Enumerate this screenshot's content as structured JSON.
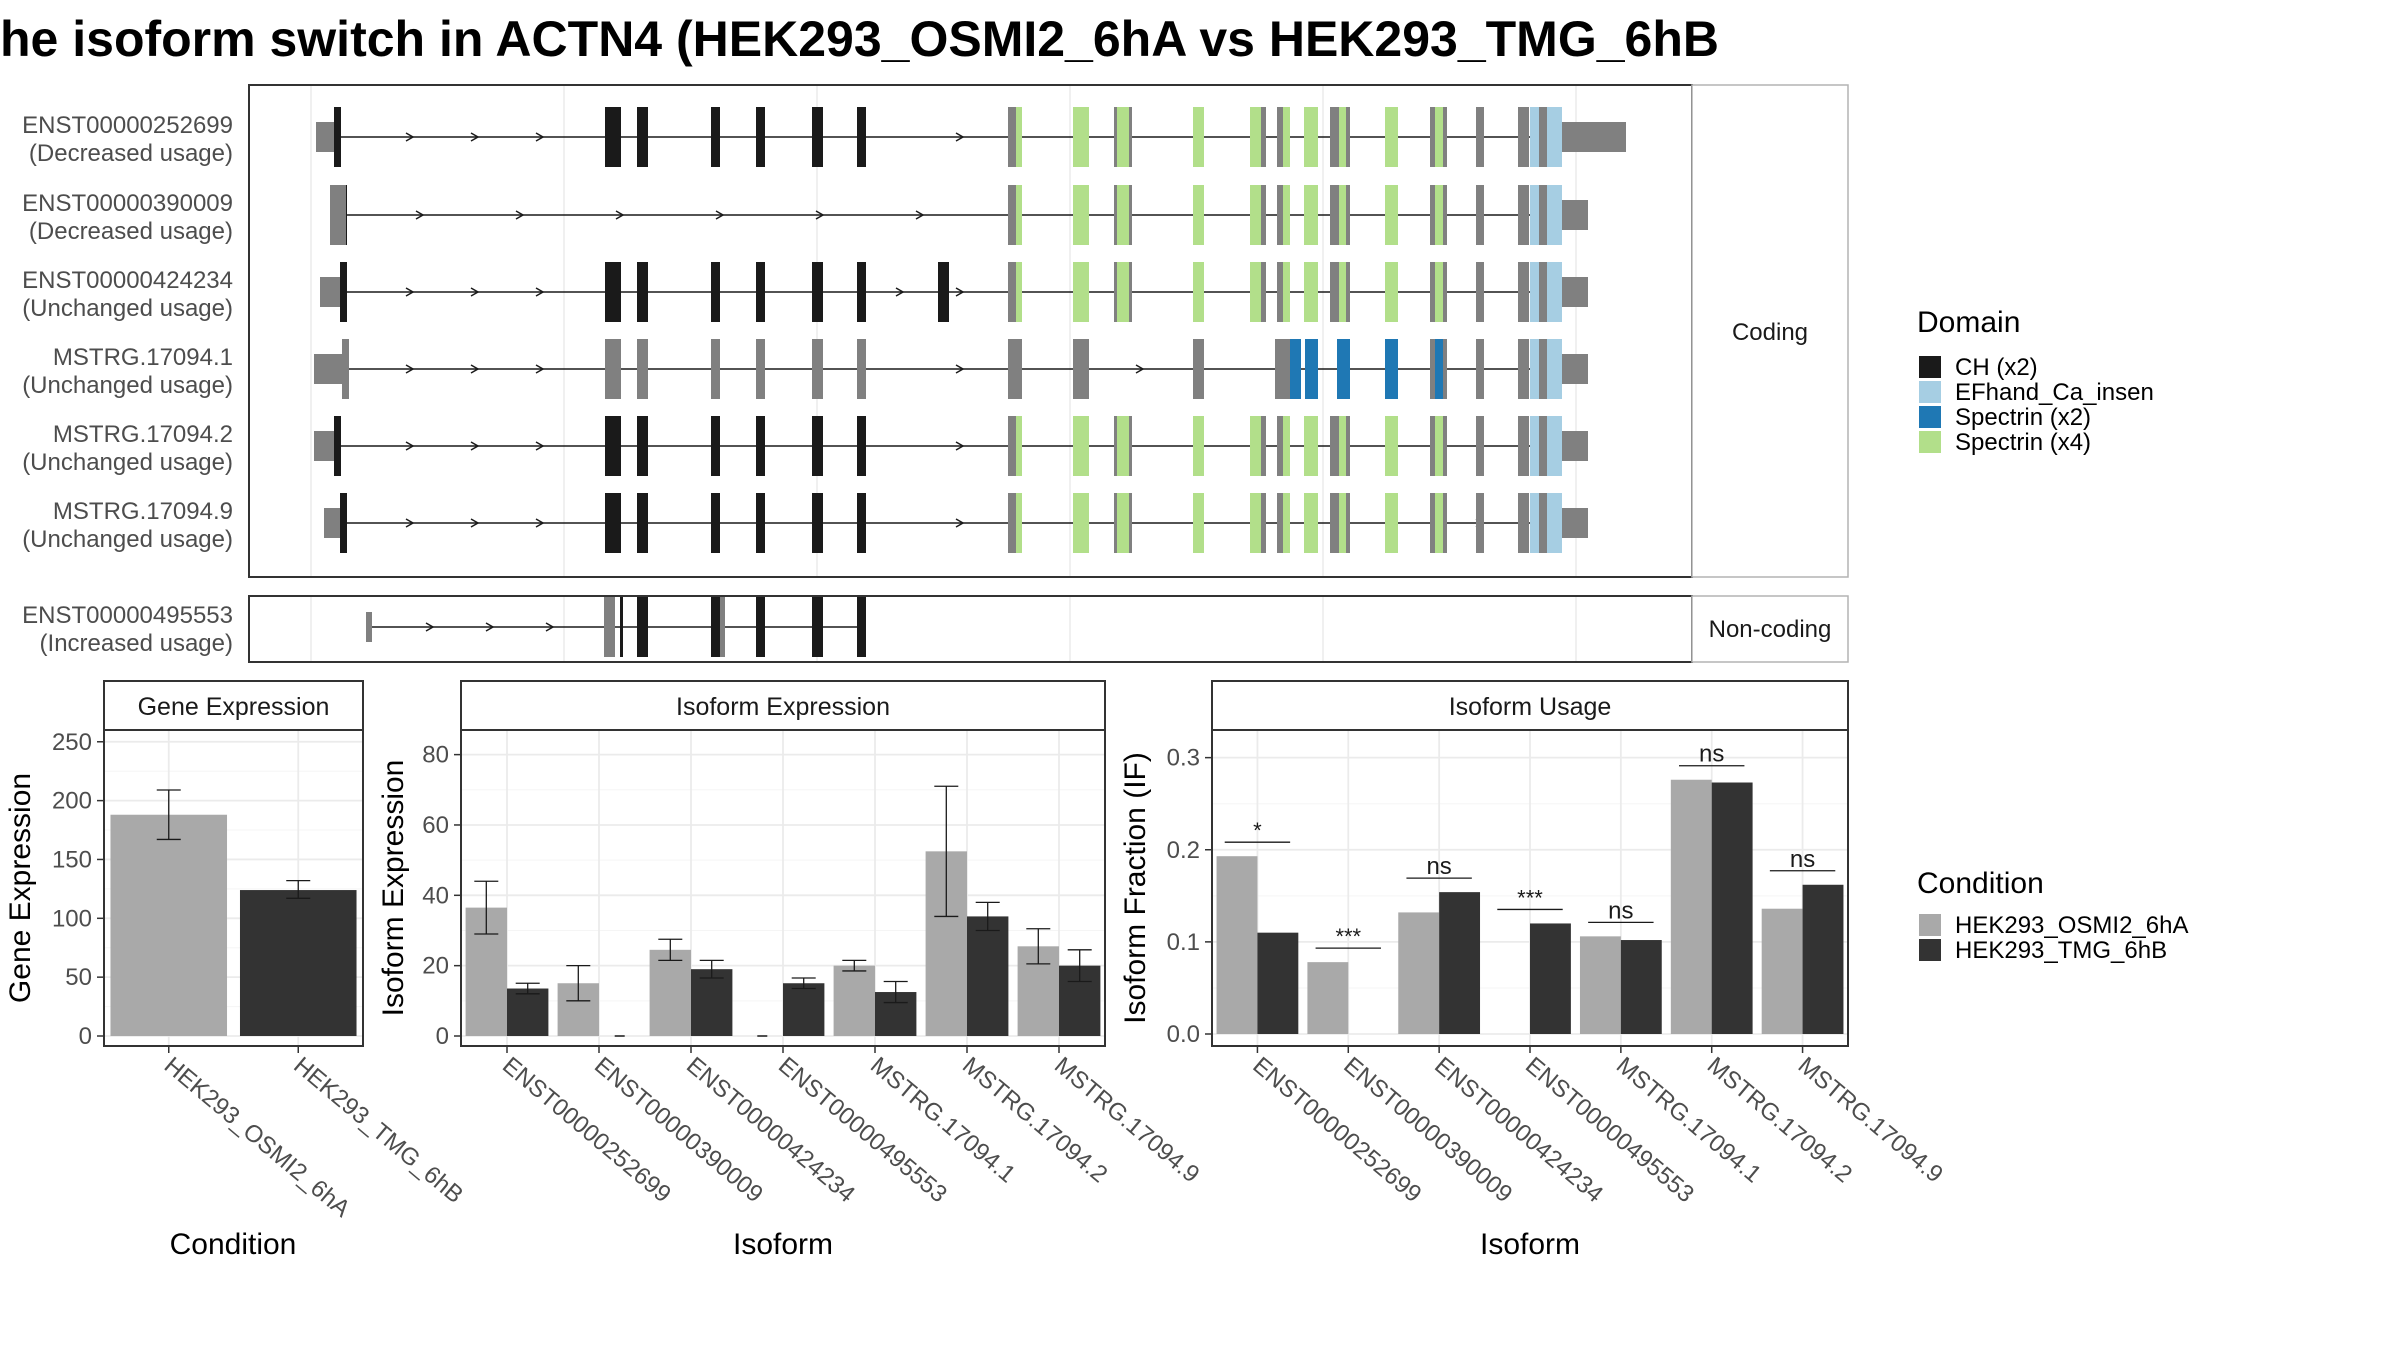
{
  "title": "he isoform switch in ACTN4 (HEK293_OSMI2_6hA vs HEK293_TMG_6hB",
  "colors": {
    "ch": "#1a1a1a",
    "efhand": "#a6cee3",
    "spectrin2": "#1f78b4",
    "spectrin4": "#b2df8a",
    "utr": "#808080",
    "cond1": "#a9a9a9",
    "cond2": "#333333"
  },
  "structure": {
    "coding_strip": "Coding",
    "noncoding_strip": "Non-coding",
    "transcripts": [
      {
        "name": "ENST00000252699",
        "note": "(Decreased usage)",
        "group": "coding"
      },
      {
        "name": "ENST00000390009",
        "note": "(Decreased usage)",
        "group": "coding"
      },
      {
        "name": "ENST00000424234",
        "note": "(Unchanged usage)",
        "group": "coding"
      },
      {
        "name": "MSTRG.17094.1",
        "note": "(Unchanged usage)",
        "group": "coding"
      },
      {
        "name": "MSTRG.17094.2",
        "note": "(Unchanged usage)",
        "group": "coding"
      },
      {
        "name": "MSTRG.17094.9",
        "note": "(Unchanged usage)",
        "group": "coding"
      },
      {
        "name": "ENST00000495553",
        "note": "(Increased usage)",
        "group": "noncoding"
      }
    ],
    "legend": {
      "title": "Domain",
      "items": [
        {
          "label": "CH (x2)",
          "color": "#1a1a1a"
        },
        {
          "label": "EFhand_Ca_insen",
          "color": "#a6cee3"
        },
        {
          "label": "Spectrin (x2)",
          "color": "#1f78b4"
        },
        {
          "label": "Spectrin (x4)",
          "color": "#b2df8a"
        }
      ]
    }
  },
  "chart_data": [
    {
      "type": "bar",
      "title": "Gene Expression",
      "xlabel": "Condition",
      "ylabel": "Gene Expression",
      "ylim": [
        0,
        260
      ],
      "yticks": [
        "0",
        "50",
        "100",
        "150",
        "200",
        "250"
      ],
      "categories": [
        "HEK293_OSMI2_6hA",
        "HEK293_TMG_6hB"
      ],
      "values": [
        188,
        124
      ],
      "error_low": [
        167,
        117
      ],
      "error_high": [
        209,
        132
      ]
    },
    {
      "type": "bar",
      "title": "Isoform Expression",
      "xlabel": "Isoform",
      "ylabel": "Isoform Expression",
      "ylim": [
        0,
        87
      ],
      "yticks": [
        "0",
        "20",
        "40",
        "60",
        "80"
      ],
      "categories": [
        "ENST00000252699",
        "ENST00000390009",
        "ENST00000424234",
        "ENST00000495553",
        "MSTRG.17094.1",
        "MSTRG.17094.2",
        "MSTRG.17094.9"
      ],
      "series": [
        {
          "name": "HEK293_OSMI2_6hA",
          "values": [
            36.5,
            15,
            24.5,
            0,
            20,
            52.5,
            25.5
          ],
          "error_low": [
            29,
            10,
            21.5,
            0,
            18.5,
            34,
            20.5
          ],
          "error_high": [
            44,
            20,
            27.5,
            0,
            21.5,
            71,
            30.5
          ]
        },
        {
          "name": "HEK293_TMG_6hB",
          "values": [
            13.5,
            0,
            19,
            15,
            12.5,
            34,
            20
          ],
          "error_low": [
            12,
            0,
            16.5,
            13.5,
            9.5,
            30,
            15.5
          ],
          "error_high": [
            15,
            0,
            21.5,
            16.5,
            15.5,
            38,
            24.5
          ]
        }
      ]
    },
    {
      "type": "bar",
      "title": "Isoform Usage",
      "xlabel": "Isoform",
      "ylabel": "Isoform Fraction (IF)",
      "ylim": [
        0,
        0.33
      ],
      "yticks": [
        "0.0",
        "0.1",
        "0.2",
        "0.3"
      ],
      "categories": [
        "ENST00000252699",
        "ENST00000390009",
        "ENST00000424234",
        "ENST00000495553",
        "MSTRG.17094.1",
        "MSTRG.17094.2",
        "MSTRG.17094.9"
      ],
      "series": [
        {
          "name": "HEK293_OSMI2_6hA",
          "values": [
            0.193,
            0.078,
            0.132,
            0,
            0.106,
            0.276,
            0.136
          ]
        },
        {
          "name": "HEK293_TMG_6hB",
          "values": [
            0.11,
            0,
            0.154,
            0.12,
            0.102,
            0.273,
            0.162
          ]
        }
      ],
      "significance": [
        "*",
        "***",
        "ns",
        "***",
        "ns",
        "ns",
        "ns"
      ]
    }
  ],
  "condition_legend": {
    "title": "Condition",
    "items": [
      {
        "label": "HEK293_OSMI2_6hA",
        "color": "#a9a9a9"
      },
      {
        "label": "HEK293_TMG_6hB",
        "color": "#333333"
      }
    ]
  }
}
